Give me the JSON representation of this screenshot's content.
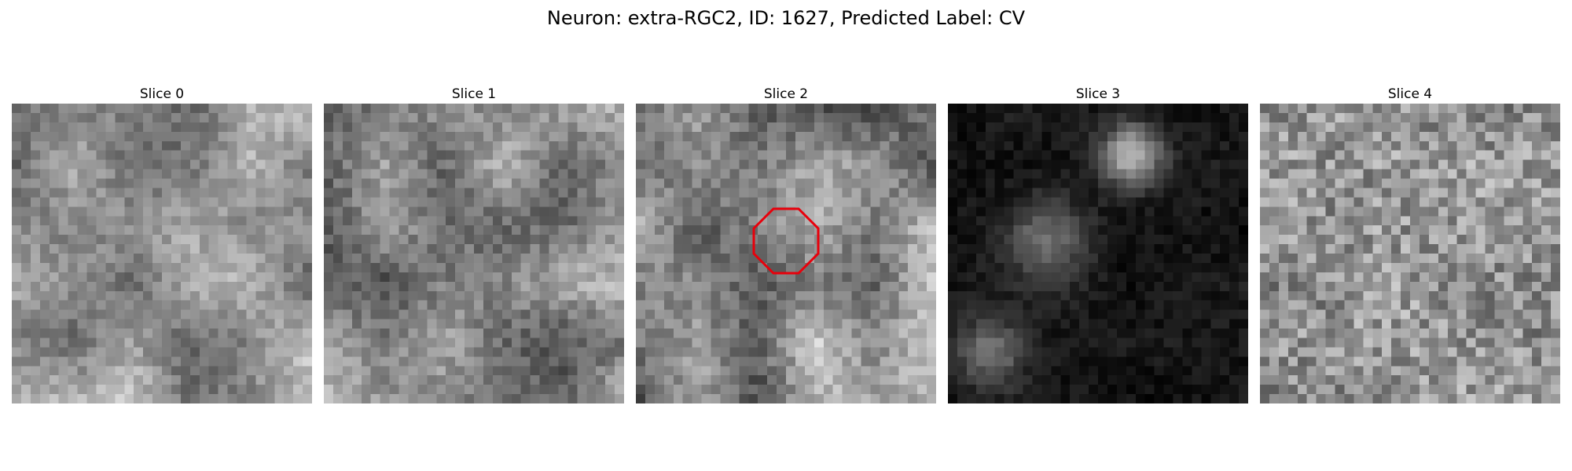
{
  "figure": {
    "title": "Neuron: extra-RGC2, ID: 1627, Predicted Label: CV"
  },
  "panels": [
    {
      "title": "Slice 0",
      "seed": 11,
      "mean": 150,
      "contrast": 55,
      "style": "bright"
    },
    {
      "title": "Slice 1",
      "seed": 23,
      "mean": 135,
      "contrast": 60,
      "style": "mixed"
    },
    {
      "title": "Slice 2",
      "seed": 37,
      "mean": 140,
      "contrast": 65,
      "style": "mixed",
      "roi": true
    },
    {
      "title": "Slice 3",
      "seed": 51,
      "mean": 20,
      "contrast": 40,
      "style": "dark"
    },
    {
      "title": "Slice 4",
      "seed": 73,
      "mean": 145,
      "contrast": 55,
      "style": "noisy"
    }
  ],
  "roi": {
    "shape": "octagon",
    "color": "#e8000b"
  },
  "colors": {
    "background": "#ffffff",
    "colormap": "gray"
  },
  "image_grid": 32
}
